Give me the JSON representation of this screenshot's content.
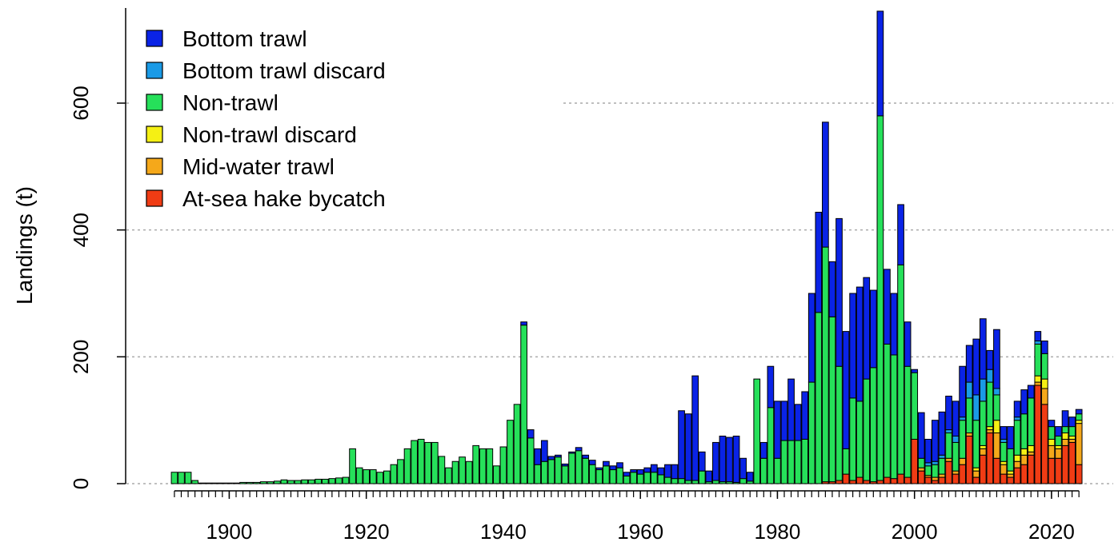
{
  "chart_data": {
    "type": "stacked-bar",
    "ylabel": "Landings (t)",
    "legend": "top-left",
    "grid": true,
    "xlim": [
      1885,
      2029
    ],
    "ylim": [
      0,
      750
    ],
    "yticks": [
      0,
      200,
      400,
      600
    ],
    "xticks": [
      1900,
      1920,
      1940,
      1960,
      1980,
      2000,
      2020
    ],
    "x": [
      1892,
      1893,
      1894,
      1895,
      1896,
      1897,
      1898,
      1899,
      1900,
      1901,
      1902,
      1903,
      1904,
      1905,
      1906,
      1907,
      1908,
      1909,
      1910,
      1911,
      1912,
      1913,
      1914,
      1915,
      1916,
      1917,
      1918,
      1919,
      1920,
      1921,
      1922,
      1923,
      1924,
      1925,
      1926,
      1927,
      1928,
      1929,
      1930,
      1931,
      1932,
      1933,
      1934,
      1935,
      1936,
      1937,
      1938,
      1939,
      1940,
      1941,
      1942,
      1943,
      1944,
      1945,
      1946,
      1947,
      1948,
      1949,
      1950,
      1951,
      1952,
      1953,
      1954,
      1955,
      1956,
      1957,
      1958,
      1959,
      1960,
      1961,
      1962,
      1963,
      1964,
      1965,
      1966,
      1967,
      1968,
      1969,
      1970,
      1971,
      1972,
      1973,
      1974,
      1975,
      1976,
      1977,
      1978,
      1979,
      1980,
      1981,
      1982,
      1983,
      1984,
      1985,
      1986,
      1987,
      1988,
      1989,
      1990,
      1991,
      1992,
      1993,
      1994,
      1995,
      1996,
      1997,
      1998,
      1999,
      2000,
      2001,
      2002,
      2003,
      2004,
      2005,
      2006,
      2007,
      2008,
      2009,
      2010,
      2011,
      2012,
      2013,
      2014,
      2015,
      2016,
      2017,
      2018,
      2019,
      2020,
      2021,
      2022,
      2023,
      2024
    ],
    "series": [
      {
        "name": "Bottom trawl",
        "color": "#0a23e6",
        "values": [
          0,
          0,
          0,
          0,
          0,
          0,
          0,
          0,
          0,
          0,
          0,
          0,
          0,
          0,
          0,
          0,
          0,
          0,
          0,
          0,
          0,
          0,
          0,
          0,
          0,
          0,
          0,
          0,
          0,
          0,
          0,
          0,
          0,
          0,
          0,
          0,
          0,
          0,
          0,
          0,
          0,
          0,
          0,
          0,
          0,
          0,
          0,
          0,
          0,
          0,
          0,
          5,
          13,
          25,
          33,
          5,
          3,
          3,
          2,
          5,
          5,
          7,
          3,
          7,
          6,
          8,
          6,
          4,
          7,
          7,
          12,
          11,
          20,
          22,
          107,
          105,
          165,
          30,
          17,
          60,
          72,
          70,
          73,
          32,
          14,
          0,
          25,
          65,
          90,
          62,
          97,
          57,
          75,
          140,
          158,
          197,
          87,
          233,
          185,
          165,
          180,
          160,
          122,
          165,
          118,
          97,
          95,
          70,
          5,
          72,
          37,
          65,
          68,
          53,
          55,
          80,
          58,
          88,
          95,
          30,
          93,
          20,
          35,
          25,
          38,
          20,
          15,
          20,
          10,
          15,
          25,
          15,
          7
        ]
      },
      {
        "name": "Bottom trawl discard",
        "color": "#1a9ae6",
        "values": [
          0,
          0,
          0,
          0,
          0,
          0,
          0,
          0,
          0,
          0,
          0,
          0,
          0,
          0,
          0,
          0,
          0,
          0,
          0,
          0,
          0,
          0,
          0,
          0,
          0,
          0,
          0,
          0,
          0,
          0,
          0,
          0,
          0,
          0,
          0,
          0,
          0,
          0,
          0,
          0,
          0,
          0,
          0,
          0,
          0,
          0,
          0,
          0,
          0,
          0,
          0,
          0,
          0,
          0,
          0,
          0,
          0,
          0,
          0,
          0,
          0,
          0,
          0,
          0,
          0,
          0,
          0,
          0,
          0,
          0,
          0,
          0,
          0,
          0,
          0,
          0,
          0,
          0,
          0,
          0,
          0,
          0,
          0,
          0,
          0,
          0,
          0,
          0,
          0,
          0,
          0,
          0,
          0,
          0,
          0,
          0,
          0,
          0,
          0,
          0,
          0,
          0,
          0,
          0,
          0,
          0,
          0,
          0,
          0,
          0,
          5,
          5,
          5,
          5,
          10,
          5,
          25,
          40,
          35,
          20,
          10,
          5,
          0,
          5,
          0,
          0,
          5,
          0,
          0,
          0,
          0,
          0,
          0
        ]
      },
      {
        "name": "Non-trawl",
        "color": "#26e05a",
        "values": [
          18,
          18,
          18,
          5,
          1,
          1,
          1,
          1,
          1,
          1,
          2,
          2,
          2,
          3,
          3,
          4,
          6,
          5,
          5,
          6,
          6,
          7,
          7,
          8,
          9,
          10,
          55,
          25,
          22,
          22,
          18,
          20,
          30,
          38,
          55,
          68,
          70,
          65,
          65,
          43,
          25,
          35,
          42,
          35,
          60,
          55,
          55,
          28,
          58,
          100,
          125,
          250,
          72,
          30,
          35,
          38,
          42,
          28,
          48,
          52,
          40,
          30,
          22,
          28,
          22,
          25,
          12,
          18,
          15,
          18,
          18,
          14,
          10,
          8,
          8,
          5,
          5,
          20,
          3,
          5,
          3,
          3,
          2,
          8,
          4,
          165,
          40,
          120,
          40,
          68,
          68,
          68,
          70,
          160,
          270,
          370,
          260,
          180,
          40,
          130,
          120,
          160,
          180,
          575,
          210,
          195,
          330,
          175,
          105,
          15,
          15,
          20,
          25,
          40,
          45,
          60,
          55,
          75,
          70,
          70,
          40,
          30,
          35,
          55,
          55,
          75,
          50,
          40,
          20,
          15,
          10,
          15,
          10
        ]
      },
      {
        "name": "Non-trawl discard",
        "color": "#f5f014",
        "values": [
          0,
          0,
          0,
          0,
          0,
          0,
          0,
          0,
          0,
          0,
          0,
          0,
          0,
          0,
          0,
          0,
          0,
          0,
          0,
          0,
          0,
          0,
          0,
          0,
          0,
          0,
          0,
          0,
          0,
          0,
          0,
          0,
          0,
          0,
          0,
          0,
          0,
          0,
          0,
          0,
          0,
          0,
          0,
          0,
          0,
          0,
          0,
          0,
          0,
          0,
          0,
          0,
          0,
          0,
          0,
          0,
          0,
          0,
          0,
          0,
          0,
          0,
          0,
          0,
          0,
          0,
          0,
          0,
          0,
          0,
          0,
          0,
          0,
          0,
          0,
          0,
          0,
          0,
          0,
          0,
          0,
          0,
          0,
          0,
          0,
          0,
          0,
          0,
          0,
          0,
          0,
          0,
          0,
          0,
          0,
          0,
          0,
          0,
          0,
          0,
          0,
          0,
          0,
          0,
          0,
          0,
          0,
          0,
          0,
          0,
          0,
          0,
          0,
          0,
          0,
          0,
          0,
          5,
          5,
          5,
          20,
          5,
          5,
          10,
          10,
          10,
          10,
          15,
          10,
          5,
          10,
          5,
          5
        ]
      },
      {
        "name": "Mid-water trawl",
        "color": "#f5a81a",
        "values": [
          0,
          0,
          0,
          0,
          0,
          0,
          0,
          0,
          0,
          0,
          0,
          0,
          0,
          0,
          0,
          0,
          0,
          0,
          0,
          0,
          0,
          0,
          0,
          0,
          0,
          0,
          0,
          0,
          0,
          0,
          0,
          0,
          0,
          0,
          0,
          0,
          0,
          0,
          0,
          0,
          0,
          0,
          0,
          0,
          0,
          0,
          0,
          0,
          0,
          0,
          0,
          0,
          0,
          0,
          0,
          0,
          0,
          0,
          0,
          0,
          0,
          0,
          0,
          0,
          0,
          0,
          0,
          0,
          0,
          0,
          0,
          0,
          0,
          0,
          0,
          0,
          0,
          0,
          0,
          0,
          0,
          0,
          0,
          0,
          0,
          0,
          0,
          0,
          0,
          0,
          0,
          0,
          0,
          0,
          0,
          0,
          0,
          0,
          0,
          0,
          0,
          0,
          0,
          0,
          0,
          0,
          0,
          0,
          0,
          5,
          3,
          5,
          5,
          5,
          5,
          10,
          5,
          10,
          10,
          5,
          40,
          15,
          5,
          10,
          15,
          5,
          5,
          25,
          20,
          15,
          10,
          5,
          65
        ]
      },
      {
        "name": "At-sea hake bycatch",
        "color": "#f03c14",
        "values": [
          0,
          0,
          0,
          0,
          0,
          0,
          0,
          0,
          0,
          0,
          0,
          0,
          0,
          0,
          0,
          0,
          0,
          0,
          0,
          0,
          0,
          0,
          0,
          0,
          0,
          0,
          0,
          0,
          0,
          0,
          0,
          0,
          0,
          0,
          0,
          0,
          0,
          0,
          0,
          0,
          0,
          0,
          0,
          0,
          0,
          0,
          0,
          0,
          0,
          0,
          0,
          0,
          0,
          0,
          0,
          0,
          0,
          0,
          0,
          0,
          0,
          0,
          0,
          0,
          0,
          0,
          0,
          0,
          0,
          0,
          0,
          0,
          0,
          0,
          0,
          0,
          0,
          0,
          0,
          0,
          0,
          0,
          0,
          0,
          0,
          0,
          0,
          0,
          0,
          0,
          0,
          0,
          0,
          0,
          0,
          3,
          3,
          5,
          15,
          5,
          10,
          5,
          3,
          5,
          10,
          8,
          15,
          10,
          70,
          20,
          10,
          5,
          10,
          35,
          15,
          30,
          75,
          10,
          45,
          80,
          40,
          15,
          10,
          25,
          30,
          45,
          155,
          125,
          40,
          40,
          60,
          65,
          30
        ]
      }
    ]
  }
}
